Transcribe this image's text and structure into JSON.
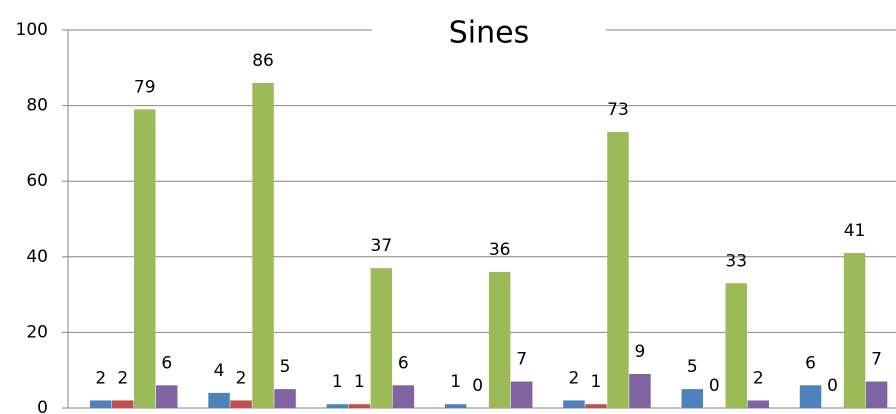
{
  "chart_data": {
    "type": "bar",
    "title": "Sines",
    "series": [
      {
        "color": "#4f81bd",
        "values": [
          2,
          4,
          1,
          1,
          2,
          5,
          6
        ]
      },
      {
        "color": "#c0504d",
        "values": [
          2,
          2,
          1,
          0,
          1,
          0,
          0
        ]
      },
      {
        "color": "#9bbb59",
        "values": [
          79,
          86,
          37,
          36,
          73,
          33,
          41
        ]
      },
      {
        "color": "#8064a2",
        "values": [
          6,
          5,
          6,
          7,
          9,
          2,
          7
        ]
      }
    ],
    "ylim": [
      0,
      100
    ],
    "yticks": [
      0,
      20,
      40,
      60,
      80,
      100
    ],
    "grid": true
  }
}
